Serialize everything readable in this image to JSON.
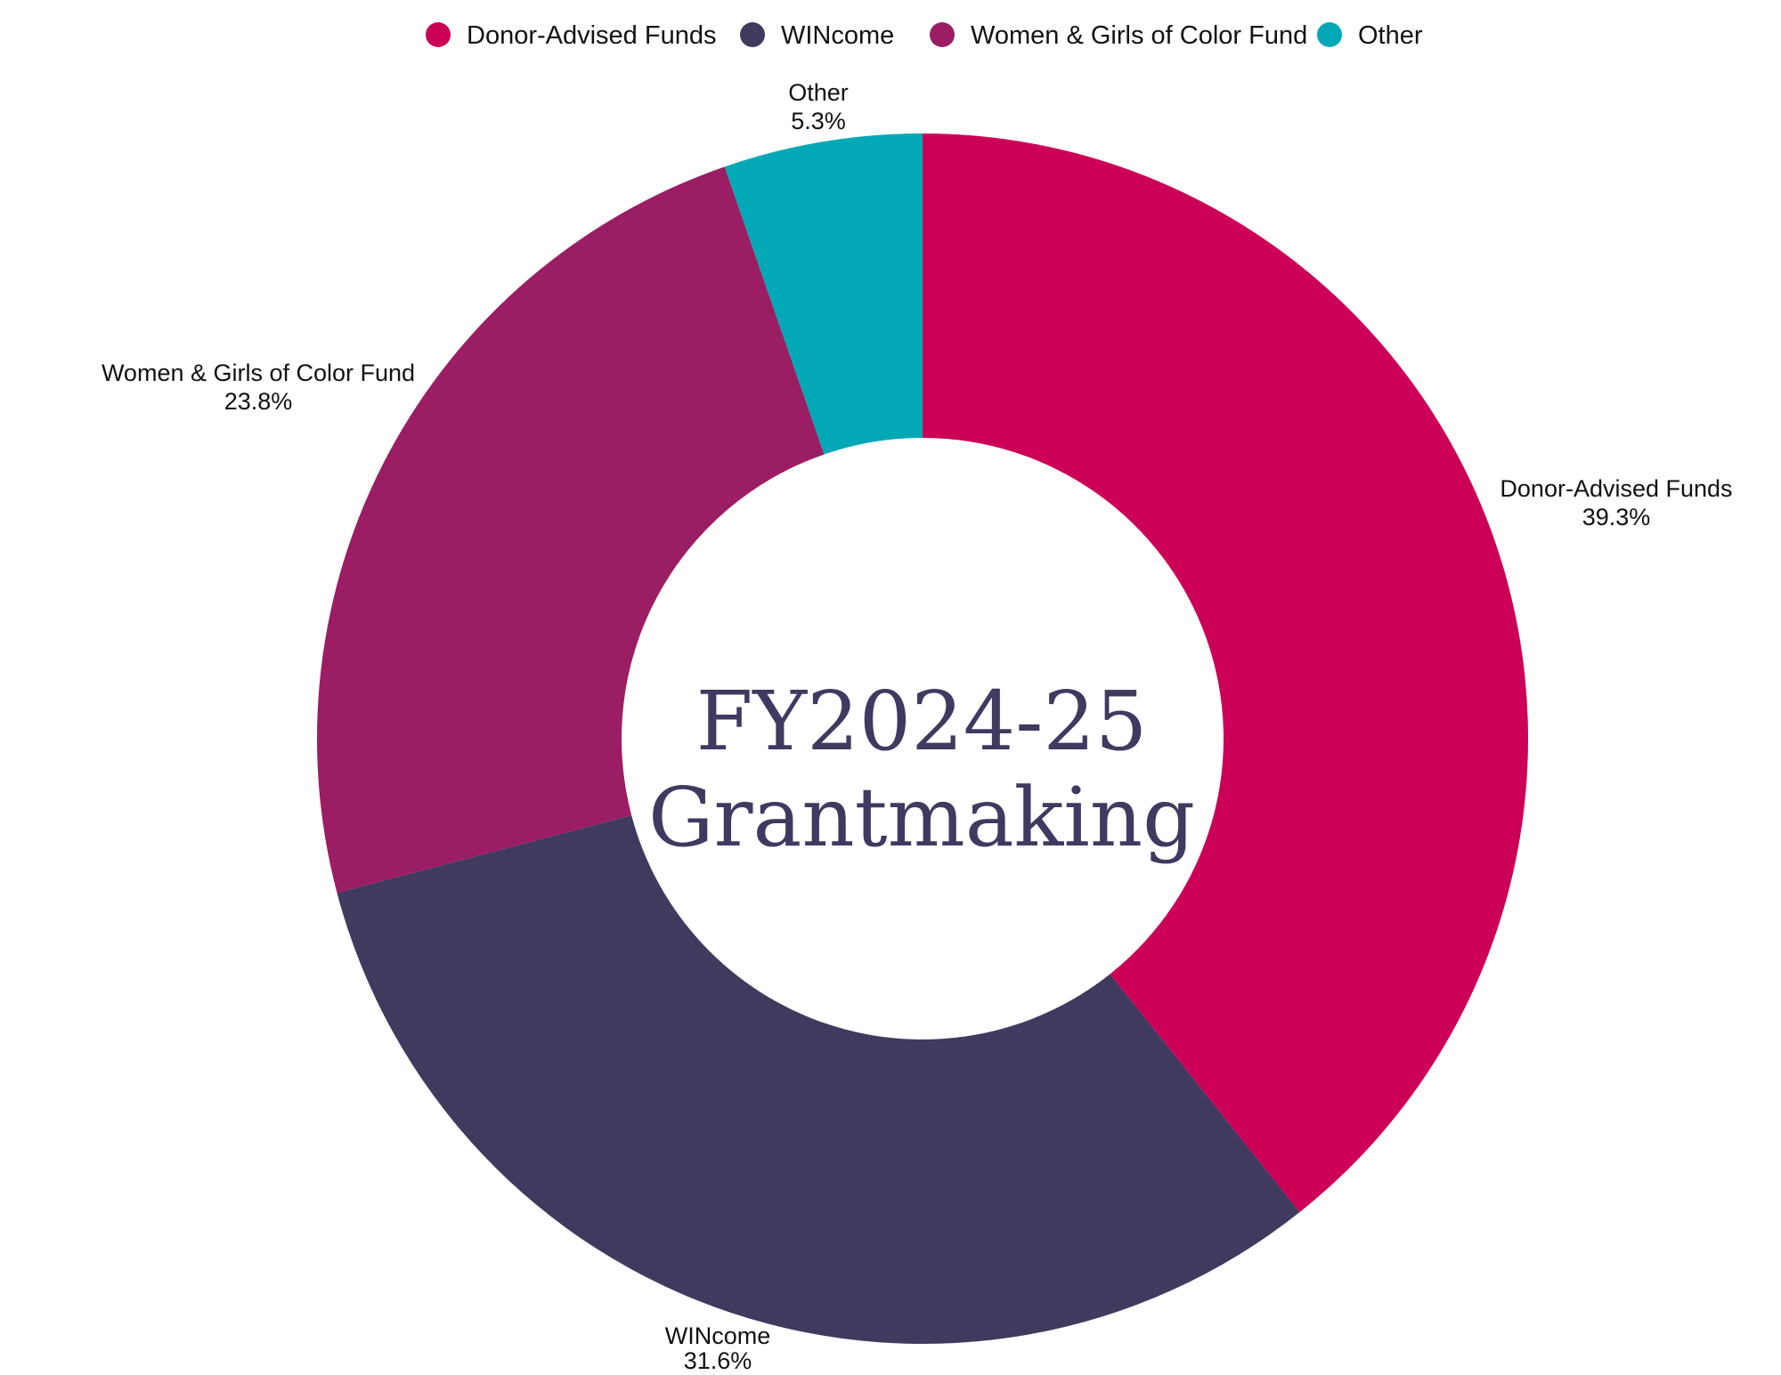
{
  "chart_data": {
    "type": "pie",
    "donut": true,
    "center_title": [
      "FY2024-25",
      "Grantmaking"
    ],
    "legend_position": "top",
    "series": [
      {
        "name": "Donor-Advised Funds",
        "value": 39.3,
        "label": "39.3%",
        "color": "#cc0056"
      },
      {
        "name": "WINcome",
        "value": 31.6,
        "label": "31.6%",
        "color": "#403a5f"
      },
      {
        "name": "Women & Girls of Color Fund",
        "value": 23.8,
        "label": "23.8%",
        "color": "#9b1d63"
      },
      {
        "name": "Other",
        "value": 5.3,
        "label": "5.3%",
        "color": "#02a8b5"
      }
    ]
  }
}
